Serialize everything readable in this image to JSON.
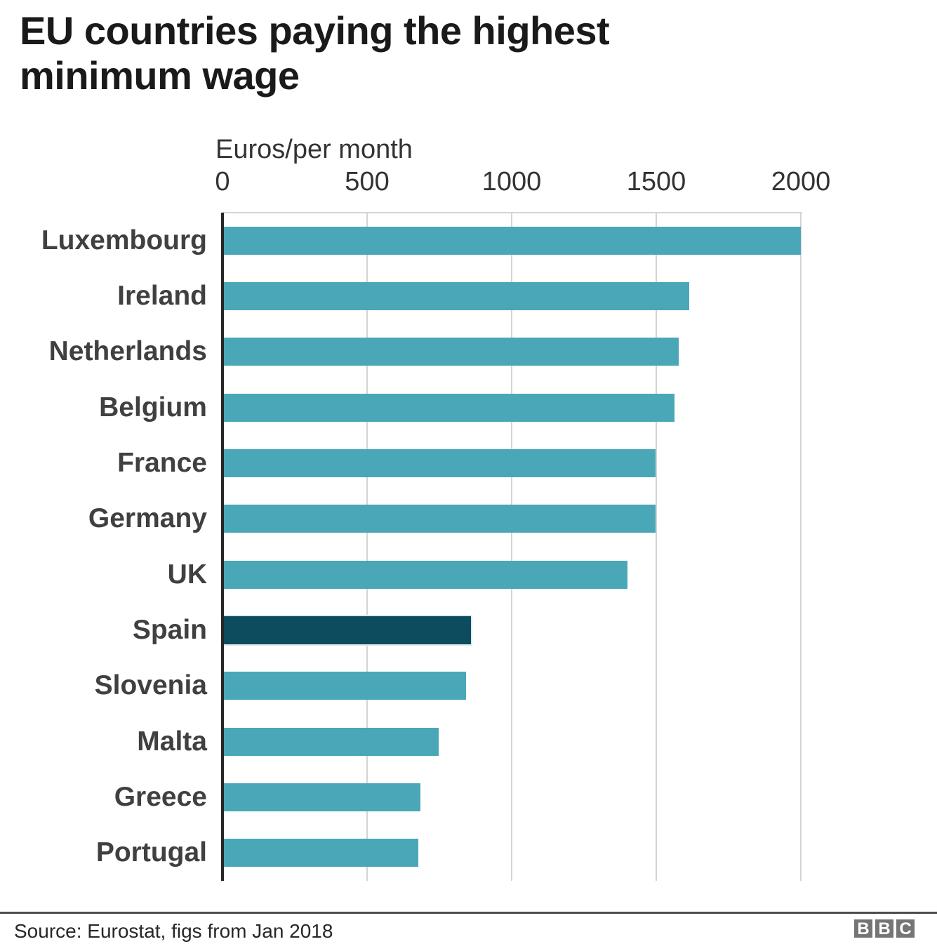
{
  "title": "EU countries paying the highest minimum wage",
  "chart_data": {
    "type": "bar",
    "orientation": "horizontal",
    "title": "EU countries paying the highest minimum wage",
    "xlabel": "Euros/per month",
    "ylabel": "",
    "categories": [
      "Luxembourg",
      "Ireland",
      "Netherlands",
      "Belgium",
      "France",
      "Germany",
      "UK",
      "Spain",
      "Slovenia",
      "Malta",
      "Greece",
      "Portugal"
    ],
    "values": [
      1999,
      1614,
      1578,
      1563,
      1498,
      1498,
      1401,
      859,
      843,
      748,
      684,
      677
    ],
    "xlim": [
      0,
      2000
    ],
    "xticks": [
      0,
      500,
      1000,
      1500,
      2000
    ],
    "grid": "vertical-gridlines-on",
    "legend": "none",
    "highlight_category": "Spain",
    "colors": {
      "bar": "#49a7b8",
      "highlight_bar": "#0d4b5e",
      "gridline": "#d4d4d4",
      "axis_line": "#262626",
      "category_label": "#404040",
      "tick_label": "#333333",
      "title": "#1a1a1a"
    }
  },
  "footer": {
    "source": "Source: Eurostat, figs from Jan 2018",
    "rule_color": "#4d4d4d",
    "logo": {
      "name": "bbc-logo",
      "letters": [
        "B",
        "B",
        "C"
      ],
      "block_color": "#757575",
      "letter_color": "#ffffff"
    }
  }
}
